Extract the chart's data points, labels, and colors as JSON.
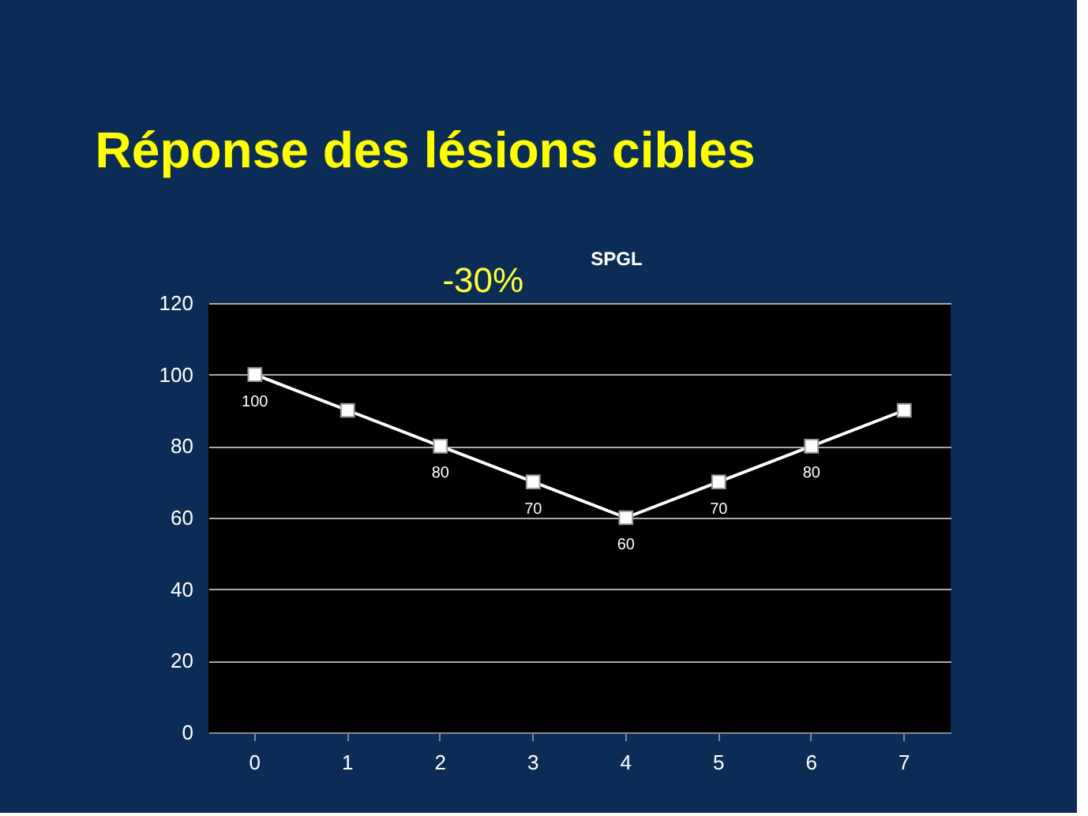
{
  "chart_data": {
    "type": "line",
    "title": "Réponse des lésions cibles",
    "subtitle": "SPGL",
    "categories": [
      "0",
      "1",
      "2",
      "3",
      "4",
      "5",
      "6",
      "7"
    ],
    "series": [
      {
        "color": "#ffffff",
        "values": [
          100,
          90,
          80,
          70,
          60,
          70,
          80,
          90
        ],
        "value_labels": [
          "100",
          null,
          "80",
          "70",
          "60",
          "70",
          "80",
          null
        ]
      }
    ],
    "ylim": [
      0,
      120
    ],
    "yticks": [
      0,
      20,
      40,
      60,
      80,
      100,
      120
    ],
    "grid": "y",
    "marker": "square",
    "line_style": "solid",
    "annotations": [
      "-30%"
    ]
  }
}
